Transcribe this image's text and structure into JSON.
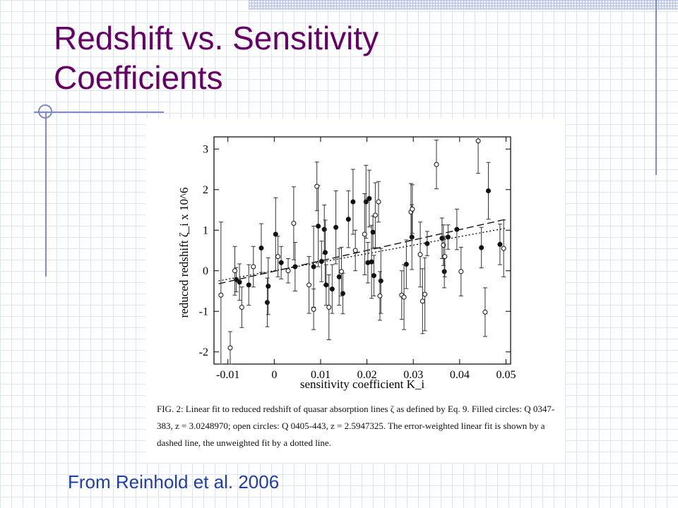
{
  "slide": {
    "title": "Redshift vs. Sensitivity Coefficients",
    "source_note": "From Reinhold et al. 2006",
    "caption": "FIG. 2: Linear fit to reduced redshift of quasar absorption lines ζ as defined by Eq. 9. Filled circles: Q 0347-383, z = 3.0248970; open circles: Q 0405-443, z = 2.5947325. The error-weighted linear fit is shown by a dashed line, the unweighted fit by a dotted line."
  },
  "colors": {
    "title": "#660066",
    "source_note": "#1f3ea8",
    "decor": "#7f8bc7"
  },
  "chart_data": {
    "type": "scatter",
    "xlabel": "sensitivity coefficient K_i",
    "ylabel": "reduced redshift ζ_i x 10^6",
    "xlim": [
      -0.013,
      0.051
    ],
    "ylim": [
      -2.3,
      3.3
    ],
    "x_ticks": [
      -0.01,
      0,
      0.01,
      0.02,
      0.03,
      0.04,
      0.05
    ],
    "x_tick_labels": [
      "-0.01",
      "0",
      "0.01",
      "0.02",
      "0.03",
      "0.04",
      "0.05"
    ],
    "y_ticks": [
      -2,
      -1,
      0,
      1,
      2,
      3
    ],
    "y_tick_labels": [
      "-2",
      "-1",
      "0",
      "1",
      "2",
      "3"
    ],
    "grid": false,
    "series": [
      {
        "marker": "filled",
        "points": [
          {
            "x": -0.0082,
            "y": -0.22,
            "err": 0.3
          },
          {
            "x": -0.0075,
            "y": -0.28,
            "err": 0.45
          },
          {
            "x": -0.0055,
            "y": -0.35,
            "err": 0.5
          },
          {
            "x": -0.0028,
            "y": 0.56,
            "err": 0.6
          },
          {
            "x": -0.0015,
            "y": -0.78,
            "err": 0.6
          },
          {
            "x": -0.0013,
            "y": -0.38,
            "err": 0.7
          },
          {
            "x": 0.0003,
            "y": 0.9,
            "err": 0.9
          },
          {
            "x": 0.0015,
            "y": 0.2,
            "err": 0.4
          },
          {
            "x": 0.0045,
            "y": 0.1,
            "err": 0.6
          },
          {
            "x": 0.0085,
            "y": 0.1,
            "err": 1.0
          },
          {
            "x": 0.0095,
            "y": 1.1,
            "err": 1.0
          },
          {
            "x": 0.0102,
            "y": 0.23,
            "err": 0.5
          },
          {
            "x": 0.0108,
            "y": 1.02,
            "err": 0.6
          },
          {
            "x": 0.011,
            "y": 0.45,
            "err": 0.8
          },
          {
            "x": 0.0112,
            "y": -0.35,
            "err": 0.5
          },
          {
            "x": 0.0125,
            "y": -0.45,
            "err": 0.6
          },
          {
            "x": 0.0133,
            "y": 1.07,
            "err": 0.9
          },
          {
            "x": 0.014,
            "y": -0.15,
            "err": 0.7
          },
          {
            "x": 0.0148,
            "y": -0.56,
            "err": 0.5
          },
          {
            "x": 0.016,
            "y": 1.27,
            "err": 0.7
          },
          {
            "x": 0.017,
            "y": 1.7,
            "err": 0.8
          },
          {
            "x": 0.0198,
            "y": 1.7,
            "err": 0.9
          },
          {
            "x": 0.0202,
            "y": 0.2,
            "err": 0.5
          },
          {
            "x": 0.0205,
            "y": 1.78,
            "err": 0.7
          },
          {
            "x": 0.021,
            "y": 0.22,
            "err": 0.9
          },
          {
            "x": 0.0213,
            "y": 0.95,
            "err": 0.4
          },
          {
            "x": 0.0215,
            "y": -0.12,
            "err": 0.5
          },
          {
            "x": 0.023,
            "y": -0.25,
            "err": 0.8
          },
          {
            "x": 0.0285,
            "y": 0.16,
            "err": 0.6
          },
          {
            "x": 0.0297,
            "y": 0.83,
            "err": 0.8
          },
          {
            "x": 0.033,
            "y": 0.67,
            "err": 0.3
          },
          {
            "x": 0.0362,
            "y": 0.8,
            "err": 0.5
          },
          {
            "x": 0.0367,
            "y": -0.02,
            "err": 0.4
          },
          {
            "x": 0.0375,
            "y": 0.83,
            "err": 0.3
          },
          {
            "x": 0.0394,
            "y": 1.02,
            "err": 0.5
          },
          {
            "x": 0.0447,
            "y": 0.57,
            "err": 0.5
          },
          {
            "x": 0.0462,
            "y": 1.97,
            "err": 0.7
          },
          {
            "x": 0.0487,
            "y": 0.65,
            "err": 0.5
          }
        ]
      },
      {
        "marker": "open",
        "points": [
          {
            "x": -0.0115,
            "y": -0.6,
            "err": 1.8
          },
          {
            "x": -0.0095,
            "y": -1.9,
            "err": 0.4
          },
          {
            "x": -0.0085,
            "y": 0.0,
            "err": 0.6
          },
          {
            "x": -0.007,
            "y": -0.9,
            "err": 0.5
          },
          {
            "x": -0.0045,
            "y": 0.1,
            "err": 0.5
          },
          {
            "x": 0.0008,
            "y": 0.35,
            "err": 0.5
          },
          {
            "x": 0.003,
            "y": 0.0,
            "err": 0.3
          },
          {
            "x": 0.0042,
            "y": 1.17,
            "err": 0.9
          },
          {
            "x": 0.0075,
            "y": -0.35,
            "err": 0.7
          },
          {
            "x": 0.0085,
            "y": -0.95,
            "err": 0.5
          },
          {
            "x": 0.0092,
            "y": 2.08,
            "err": 0.6
          },
          {
            "x": 0.0118,
            "y": -0.9,
            "err": 0.8
          },
          {
            "x": 0.0145,
            "y": -0.02,
            "err": 0.6
          },
          {
            "x": 0.0175,
            "y": 0.5,
            "err": 0.5
          },
          {
            "x": 0.0195,
            "y": 0.9,
            "err": 1.0
          },
          {
            "x": 0.0218,
            "y": 1.37,
            "err": 0.8
          },
          {
            "x": 0.0225,
            "y": 1.7,
            "err": 0.5
          },
          {
            "x": 0.0228,
            "y": -0.62,
            "err": 0.6
          },
          {
            "x": 0.0275,
            "y": -0.6,
            "err": 0.6
          },
          {
            "x": 0.028,
            "y": -0.65,
            "err": 0.8
          },
          {
            "x": 0.0295,
            "y": 1.45,
            "err": 0.7
          },
          {
            "x": 0.0298,
            "y": 1.52,
            "err": 0.6
          },
          {
            "x": 0.0315,
            "y": 0.4,
            "err": 0.8
          },
          {
            "x": 0.032,
            "y": -0.75,
            "err": 0.8
          },
          {
            "x": 0.0325,
            "y": -0.58,
            "err": 0.9
          },
          {
            "x": 0.035,
            "y": 2.62,
            "err": 0.6
          },
          {
            "x": 0.0365,
            "y": 0.63,
            "err": 0.5
          },
          {
            "x": 0.0368,
            "y": 0.35,
            "err": 0.5
          },
          {
            "x": 0.0403,
            "y": -0.02,
            "err": 0.6
          },
          {
            "x": 0.044,
            "y": 3.2,
            "err": 0.8
          },
          {
            "x": 0.0455,
            "y": -1.02,
            "err": 0.6
          },
          {
            "x": 0.0495,
            "y": 0.55,
            "err": 0.7
          }
        ]
      }
    ],
    "lines": [
      {
        "style": "dashed",
        "x": [
          -0.012,
          0.05
        ],
        "y": [
          -0.32,
          1.27
        ]
      },
      {
        "style": "dotted",
        "x": [
          -0.012,
          0.05
        ],
        "y": [
          -0.25,
          1.05
        ]
      }
    ]
  }
}
